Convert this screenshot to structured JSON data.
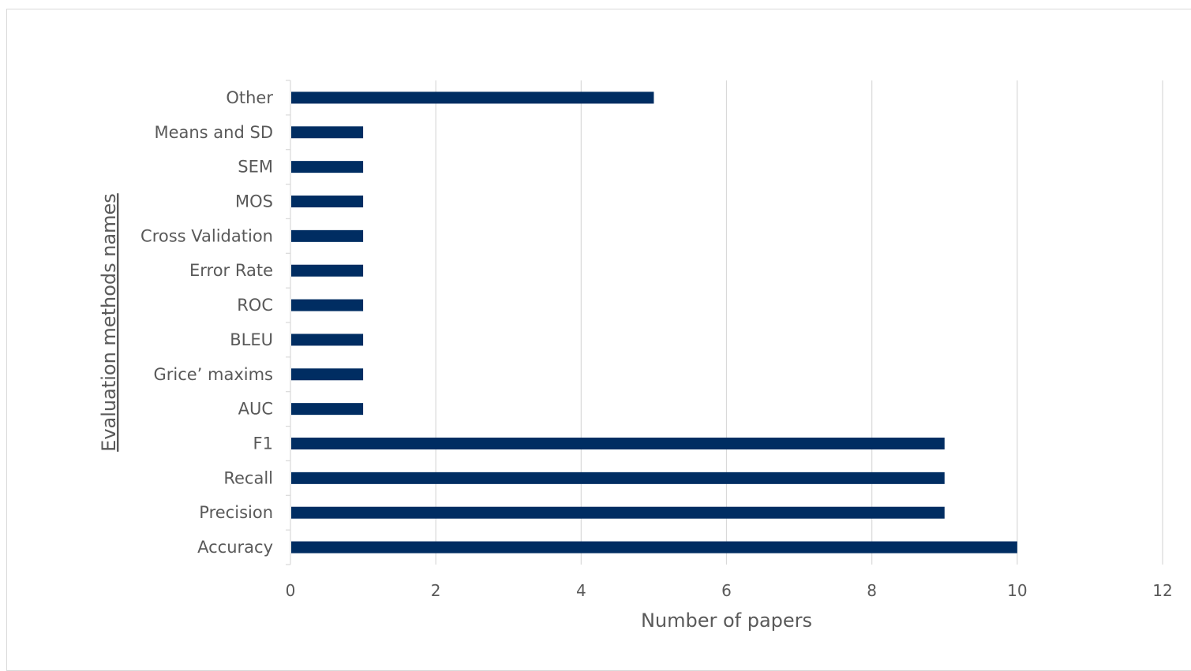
{
  "chart_data": {
    "type": "bar",
    "orientation": "horizontal",
    "categories": [
      "Accuracy",
      "Precision",
      "Recall",
      "F1",
      "AUC",
      "Grice’ maxims",
      "BLEU",
      "ROC",
      "Error Rate",
      "Cross Validation",
      "MOS",
      "SEM",
      "Means and SD",
      "Other"
    ],
    "values": [
      10,
      9,
      9,
      9,
      1,
      1,
      1,
      1,
      1,
      1,
      1,
      1,
      1,
      5
    ],
    "xlabel": "Number of papers",
    "ylabel": "Evaluation methods  names",
    "xlim": [
      0,
      12
    ],
    "xticks": [
      0,
      2,
      4,
      6,
      8,
      10,
      12
    ],
    "grid": "vertical",
    "legend": "none",
    "bar_color": "#002d62",
    "grid_color": "#d9d9d9",
    "text_color": "#595959"
  }
}
